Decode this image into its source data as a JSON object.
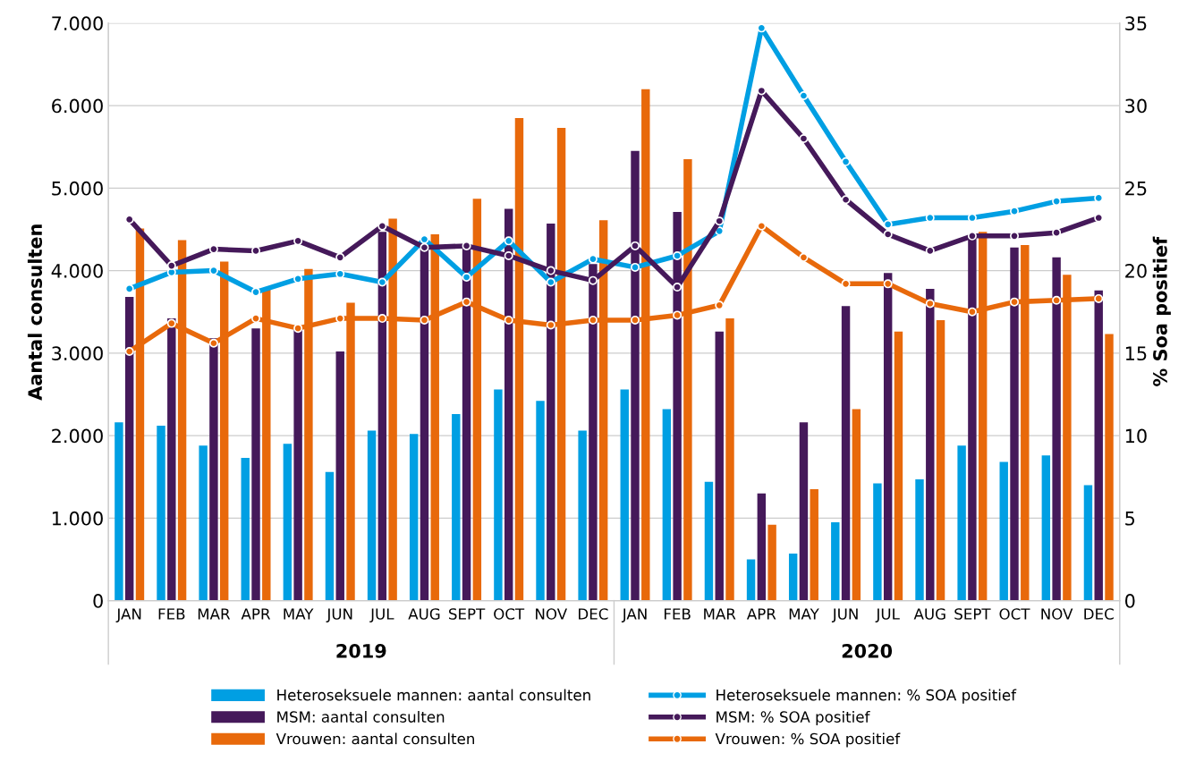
{
  "chart_data": {
    "type": "bar",
    "ylabel": "Aantal consulten",
    "y2label": "% Soa positief",
    "categories": [
      "JAN",
      "FEB",
      "MAR",
      "APR",
      "MAY",
      "JUN",
      "JUL",
      "AUG",
      "SEPT",
      "OCT",
      "NOV",
      "DEC",
      "JAN",
      "FEB",
      "MAR",
      "APR",
      "MAY",
      "JUN",
      "JUL",
      "AUG",
      "SEPT",
      "OCT",
      "NOV",
      "DEC"
    ],
    "annotations": [
      "2019",
      "2020"
    ],
    "series": [
      {
        "name": "Heteroseksuele mannen: aantal consulten",
        "color": "#009fe3",
        "values": [
          2160,
          2120,
          1880,
          1730,
          1900,
          1560,
          2060,
          2020,
          2260,
          2560,
          2420,
          2060,
          2560,
          2320,
          1440,
          500,
          570,
          950,
          1420,
          1470,
          1880,
          1680,
          1760,
          1400
        ]
      },
      {
        "name": "MSM: aantal consulten",
        "color": "#45195a",
        "values": [
          3680,
          3420,
          3180,
          3300,
          3290,
          3020,
          4470,
          4290,
          4290,
          4750,
          4570,
          4080,
          5450,
          4710,
          3260,
          1300,
          2160,
          3570,
          3970,
          3780,
          4420,
          4280,
          4160,
          3760
        ]
      },
      {
        "name": "Vrouwen: aantal consulten",
        "color": "#e8690b",
        "values": [
          4510,
          4370,
          4110,
          3770,
          4020,
          3610,
          4630,
          4440,
          4870,
          5850,
          5730,
          4610,
          6200,
          5350,
          3420,
          920,
          1350,
          2320,
          3260,
          3400,
          4470,
          4310,
          3950,
          3230
        ]
      },
      {
        "name": "Heteroseksuele mannen: % SOA positief",
        "type": "line",
        "axis": "y2",
        "color": "#009fe3",
        "values": [
          18.9,
          19.9,
          20.0,
          18.7,
          19.5,
          19.8,
          19.3,
          21.9,
          19.6,
          21.8,
          19.3,
          20.7,
          20.2,
          20.9,
          22.4,
          34.7,
          30.6,
          26.6,
          22.8,
          23.2,
          23.2,
          23.6,
          24.2,
          24.4
        ]
      },
      {
        "name": "MSM: % SOA positief",
        "type": "line",
        "axis": "y2",
        "color": "#45195a",
        "values": [
          23.1,
          20.3,
          21.3,
          21.2,
          21.8,
          20.8,
          22.7,
          21.4,
          21.5,
          20.9,
          20.0,
          19.4,
          21.5,
          19.0,
          23.0,
          30.9,
          28.0,
          24.3,
          22.2,
          21.2,
          22.1,
          22.1,
          22.3,
          23.2
        ]
      },
      {
        "name": "Vrouwen: % SOA positief",
        "type": "line",
        "axis": "y2",
        "color": "#e8690b",
        "values": [
          15.1,
          16.8,
          15.6,
          17.1,
          16.5,
          17.1,
          17.1,
          17.0,
          18.1,
          17.0,
          16.7,
          17.0,
          17.0,
          17.3,
          17.9,
          22.7,
          20.8,
          19.2,
          19.2,
          18.0,
          17.5,
          18.1,
          18.2,
          18.3
        ]
      }
    ],
    "ylim": [
      0,
      7000
    ],
    "yticks": [
      0,
      {
        "value": 1000,
        "label": "1.000"
      },
      {
        "value": 2000,
        "label": "2.000"
      },
      {
        "value": 3000,
        "label": "3.000"
      },
      {
        "value": 4000,
        "label": "4.000"
      },
      {
        "value": 5000,
        "label": "5.000"
      },
      {
        "value": 6000,
        "label": "6.000"
      },
      {
        "value": 7000,
        "label": "7.000"
      }
    ],
    "y2lim": [
      0,
      35
    ],
    "y2ticks": [
      0,
      5,
      10,
      15,
      20,
      25,
      30,
      35
    ],
    "grid": "y",
    "legend": "bottom",
    "marker": "circle",
    "line_style": "solid"
  }
}
